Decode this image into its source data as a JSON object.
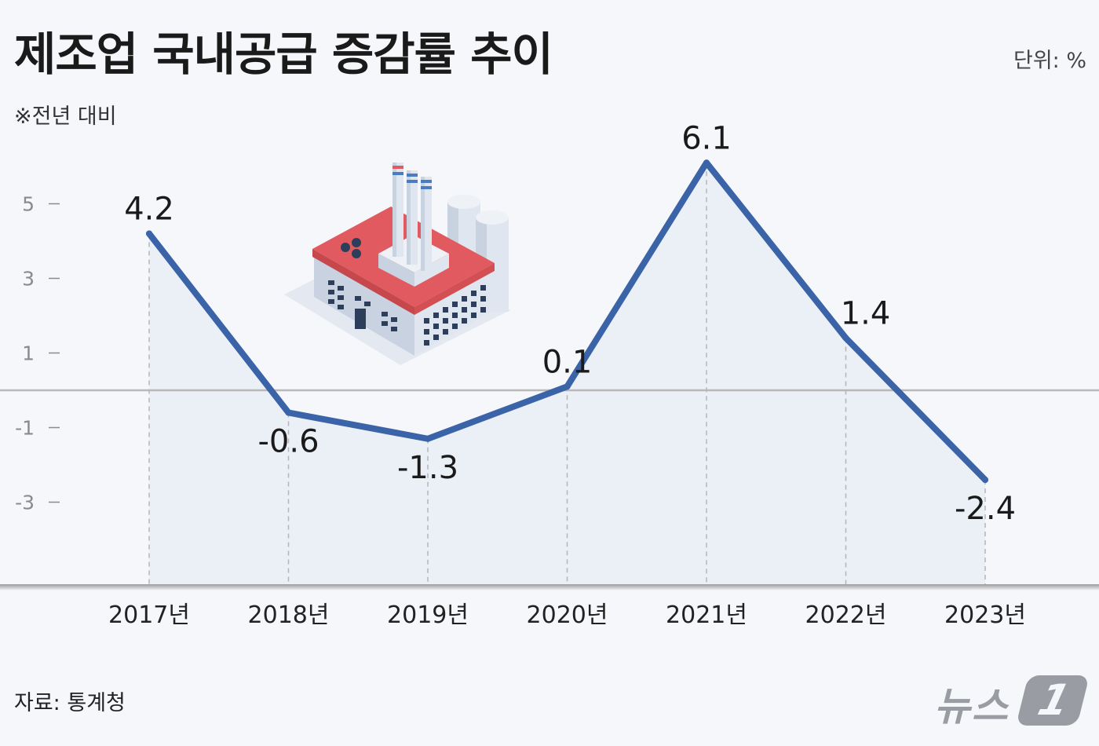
{
  "header": {
    "title": "제조업 국내공급 증감률 추이",
    "unit": "단위: %",
    "note": "※전년 대비"
  },
  "footer": {
    "source": "자료: 통계청",
    "logo_text": "뉴스",
    "logo_badge": "1"
  },
  "colors": {
    "line": "#3a63a8",
    "area": "#e8ecf5",
    "zero_line": "#b8b8b8",
    "grid": "#b5b5b5"
  },
  "illustration": "factory-icon",
  "chart_data": {
    "type": "line",
    "categories": [
      "2017년",
      "2018년",
      "2019년",
      "2020년",
      "2021년",
      "2022년",
      "2023년"
    ],
    "series": [
      {
        "values": [
          4.2,
          -0.6,
          -1.3,
          0.1,
          6.1,
          1.4,
          -2.4
        ]
      }
    ],
    "data_labels": [
      "4.2",
      "-0.6",
      "-1.3",
      "0.1",
      "6.1",
      "1.4",
      "-2.4"
    ],
    "yticks": [
      5,
      3,
      1,
      -1,
      -3
    ],
    "ytick_labels": [
      "5",
      "3",
      "1",
      "-1",
      "-3"
    ],
    "ylim": [
      -5.4,
      7.1
    ],
    "zero_line": true,
    "grid": "vertical dashed"
  }
}
